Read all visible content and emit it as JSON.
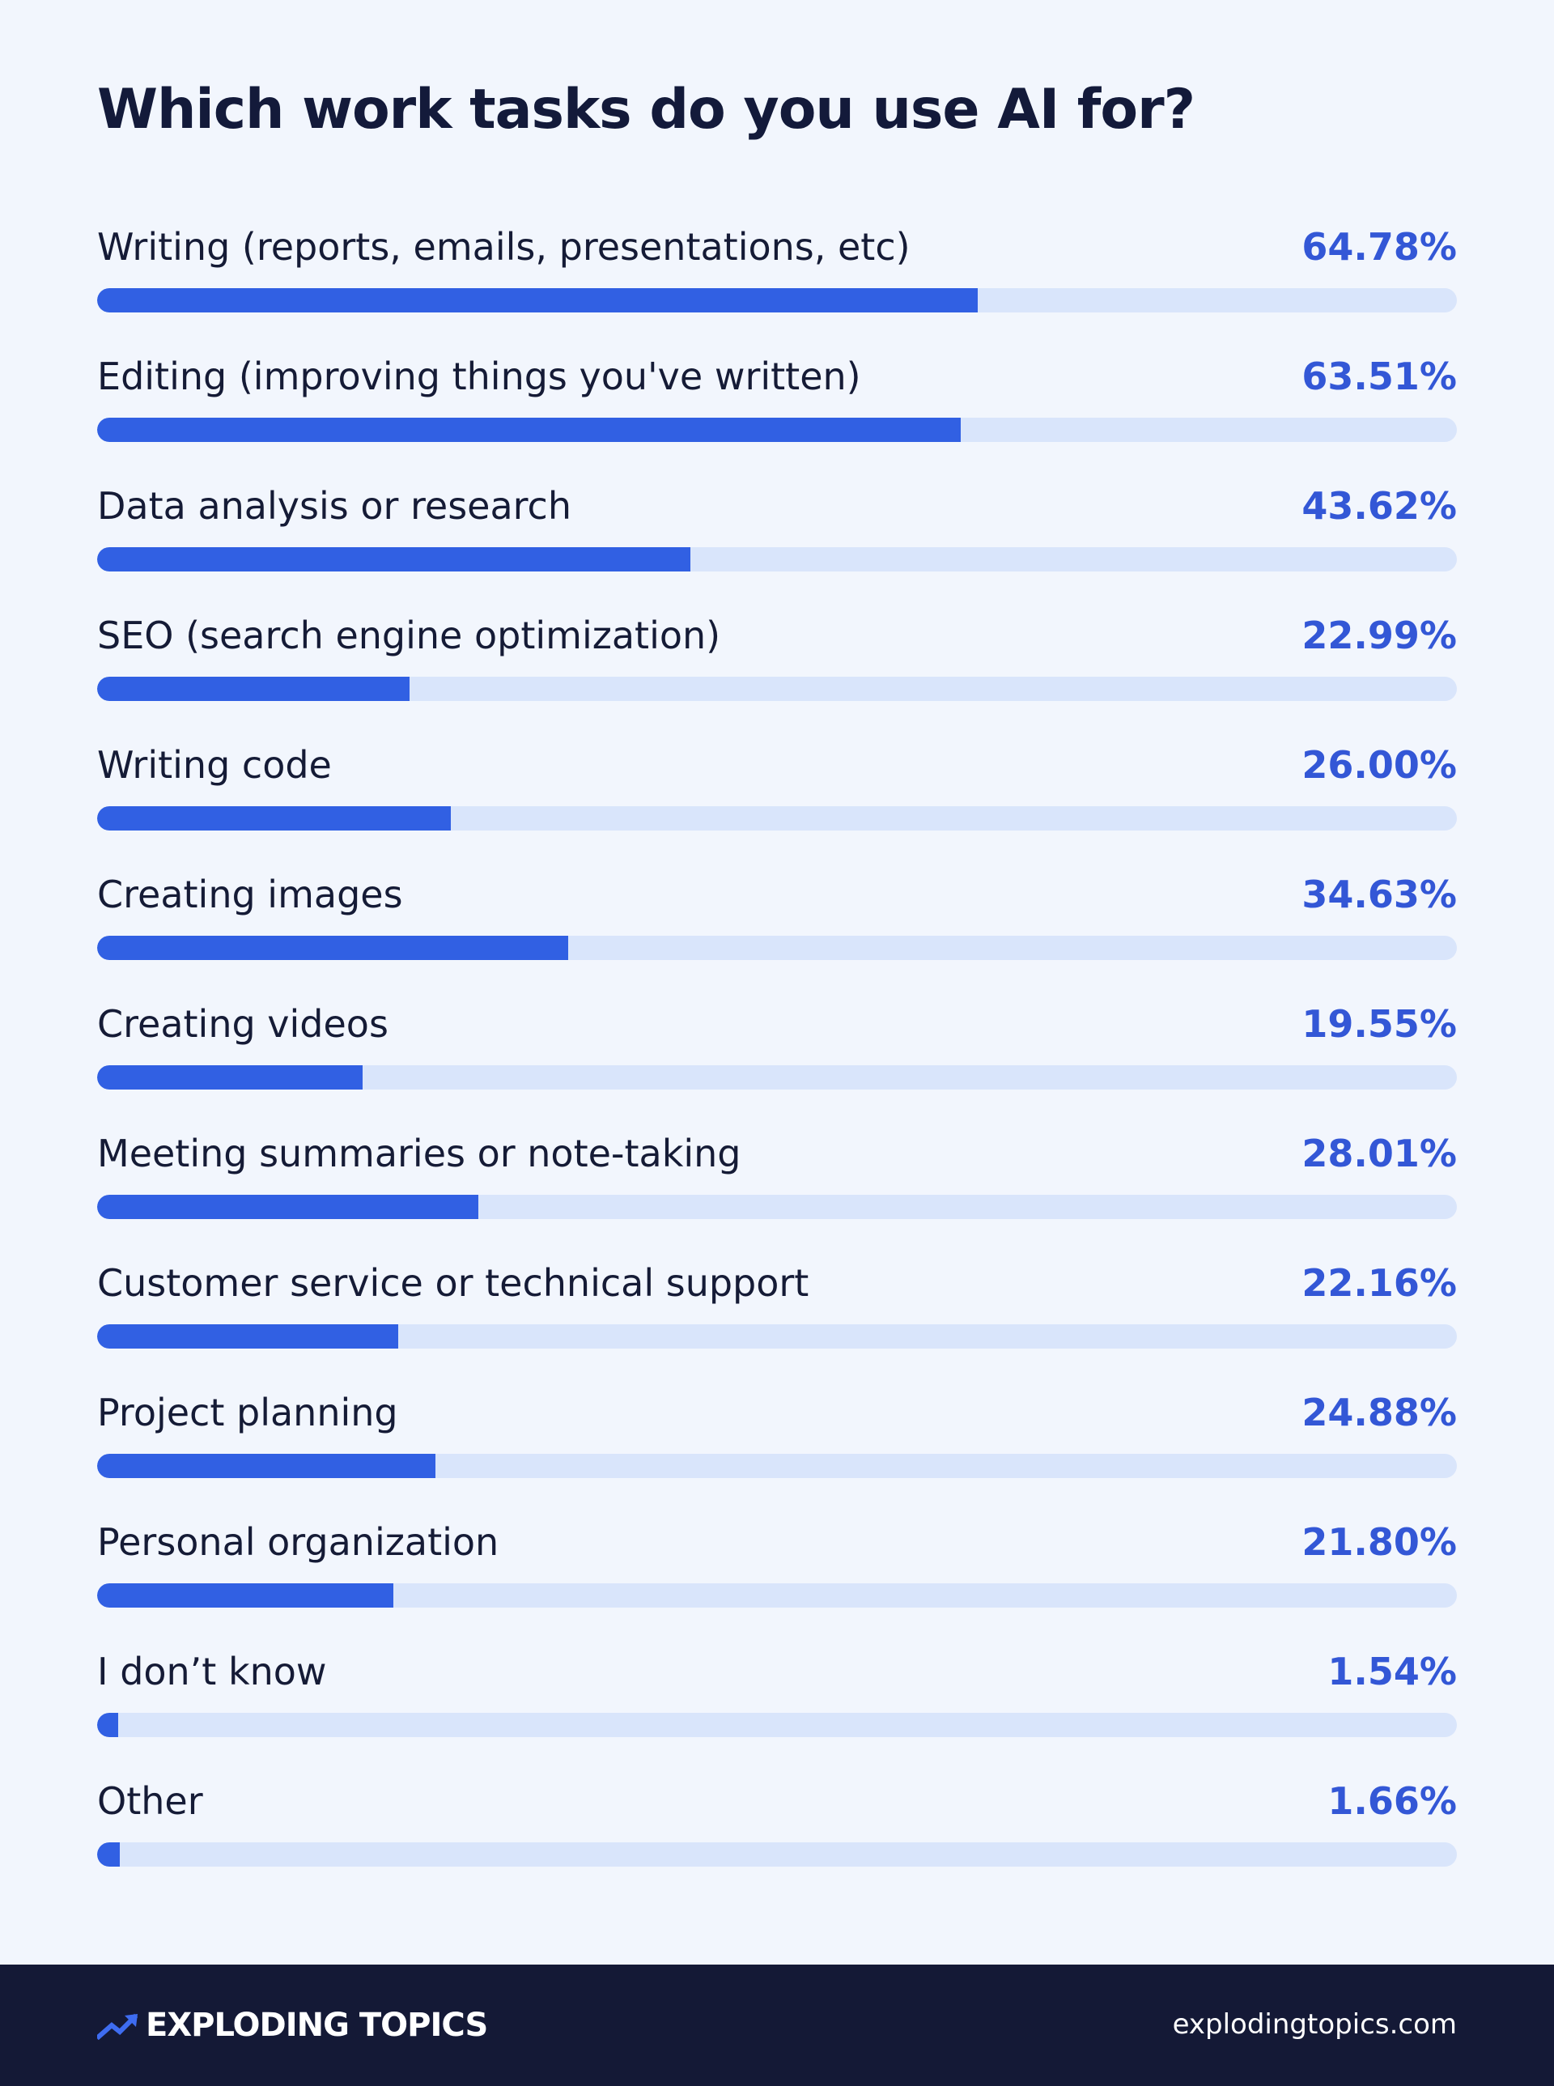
{
  "chart_data": {
    "type": "bar",
    "title": "Which work tasks do you use AI for?",
    "xlabel": "",
    "ylabel": "",
    "ylim": [
      0,
      100
    ],
    "unit": "%",
    "categories": [
      "Writing (reports, emails, presentations, etc)",
      "Editing (improving things you've written)",
      "Data analysis or research",
      "SEO (search engine optimization)",
      "Writing code",
      "Creating images",
      "Creating videos",
      "Meeting summaries or note-taking",
      "Customer service or technical support",
      "Project planning",
      "Personal organization",
      "I don’t know",
      "Other"
    ],
    "values": [
      64.78,
      63.51,
      43.62,
      22.99,
      26.0,
      34.63,
      19.55,
      28.01,
      22.16,
      24.88,
      21.8,
      1.54,
      1.66
    ],
    "value_labels": [
      "64.78%",
      "63.51%",
      "43.62%",
      "22.99%",
      "26.00%",
      "34.63%",
      "19.55%",
      "28.01%",
      "22.16%",
      "24.88%",
      "21.80%",
      "1.54%",
      "1.66%"
    ],
    "colors": {
      "bar": "#3160e3",
      "track": "#d9e5fb",
      "value_text": "#3357d6"
    }
  },
  "footer": {
    "brand": "EXPLODING TOPICS",
    "brand_icon": "trending-up-icon",
    "site": "explodingtopics.com"
  },
  "colors": {
    "background": "#f2f6fd",
    "footer_background": "#141936",
    "title_text": "#131a3a"
  }
}
